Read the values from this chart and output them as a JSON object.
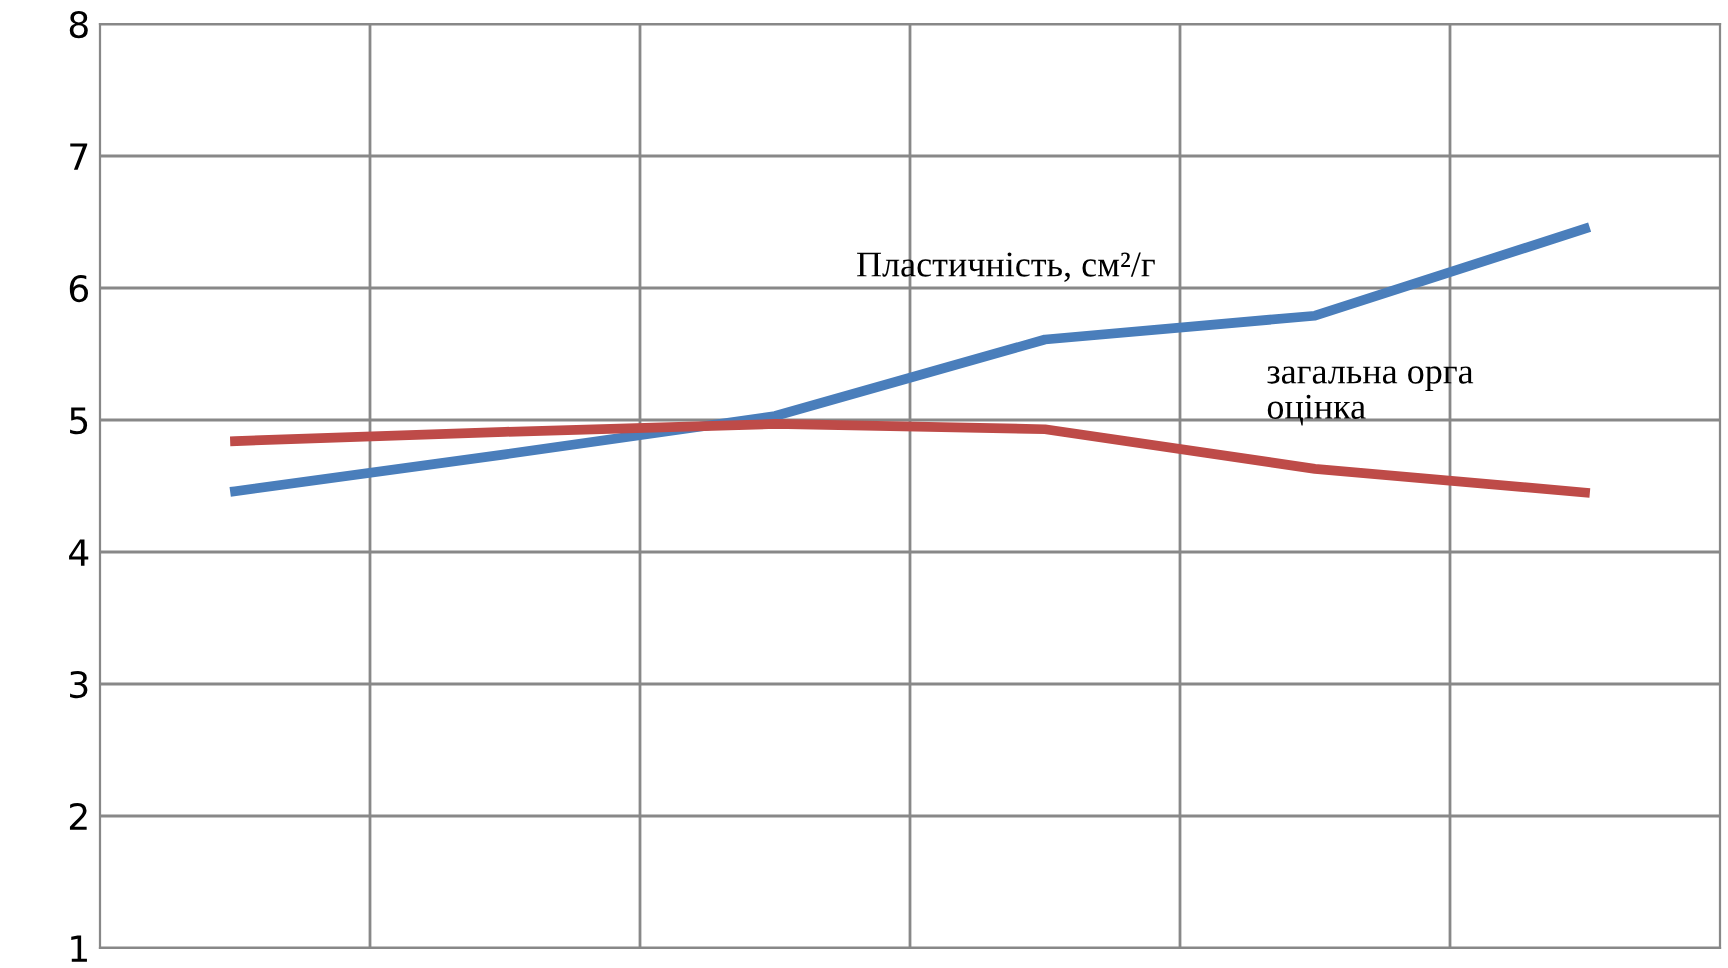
{
  "chart_data": {
    "type": "line",
    "categories": [
      null,
      null,
      null,
      null,
      null,
      null
    ],
    "series": [
      {
        "name": "Пластичність, см²/г",
        "color": "#4a7ebb",
        "values": [
          4.46,
          4.74,
          5.03,
          5.61,
          5.79,
          6.45
        ]
      },
      {
        "name": "загальна орга\nоцінка",
        "color": "#be4b48",
        "values": [
          4.84,
          4.91,
          4.97,
          4.93,
          4.63,
          4.45
        ]
      }
    ],
    "ylim": [
      1,
      8
    ],
    "yticks": [
      1,
      2,
      3,
      4,
      5,
      6,
      7,
      8
    ],
    "grid": true,
    "legend": false,
    "marker": "none",
    "line_style": "solid"
  }
}
